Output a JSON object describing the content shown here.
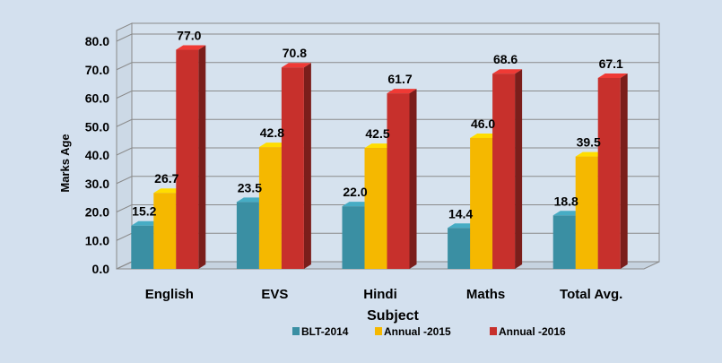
{
  "chart_data": {
    "type": "bar",
    "categories": [
      "English",
      "EVS",
      "Hindi",
      "Maths",
      "Total Avg."
    ],
    "series": [
      {
        "name": "BLT-2014",
        "values": [
          15.2,
          23.5,
          22.0,
          14.4,
          18.8
        ],
        "color": "#3a8fa3"
      },
      {
        "name": "Annual -2015",
        "values": [
          26.7,
          42.8,
          42.5,
          46.0,
          39.5
        ],
        "color": "#f5b800"
      },
      {
        "name": "Annual -2016",
        "values": [
          77.0,
          70.8,
          61.7,
          68.6,
          67.1
        ],
        "color": "#c7302c"
      }
    ],
    "xlabel": "Subject",
    "ylabel": "Marks Age",
    "ylim": [
      0,
      80
    ],
    "yticks": [
      "0.0",
      "10.0",
      "20.0",
      "30.0",
      "40.0",
      "50.0",
      "60.0",
      "70.0",
      "80.0"
    ],
    "data_labels": [
      [
        "15.2",
        "23.5",
        "22.0",
        "14.4",
        "18.8"
      ],
      [
        "26.7",
        "42.8",
        "42.5",
        "46.0",
        "39.5"
      ],
      [
        "77.0",
        "70.8",
        "61.7",
        "68.6",
        "67.1"
      ]
    ],
    "grid": true,
    "legend_position": "bottom",
    "style": "3d-bar"
  }
}
